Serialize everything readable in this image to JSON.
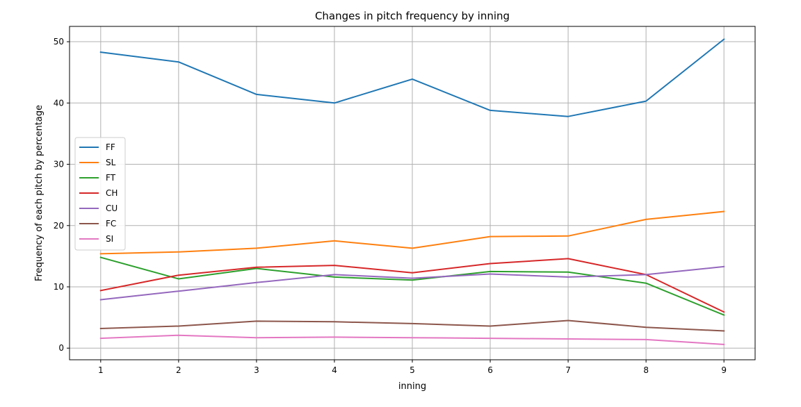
{
  "chart_data": {
    "type": "line",
    "title": "Changes in pitch frequency by inning",
    "xlabel": "inning",
    "ylabel": "Frequency of each pitch by percentage",
    "x": [
      1,
      2,
      3,
      4,
      5,
      6,
      7,
      8,
      9
    ],
    "xlim": [
      0.6,
      9.4
    ],
    "ylim": [
      -1.9,
      52.5
    ],
    "yticks": [
      0,
      10,
      20,
      30,
      40,
      50
    ],
    "grid": true,
    "legend_position": "center-left",
    "series": [
      {
        "name": "FF",
        "color": "#1f77b4",
        "values": [
          48.3,
          46.7,
          41.4,
          40.0,
          43.9,
          38.8,
          37.8,
          40.3,
          50.4
        ]
      },
      {
        "name": "SL",
        "color": "#ff7f0e",
        "values": [
          15.4,
          15.7,
          16.3,
          17.5,
          16.3,
          18.2,
          18.3,
          21.0,
          22.3
        ]
      },
      {
        "name": "FT",
        "color": "#2ca02c",
        "values": [
          14.8,
          11.3,
          13.0,
          11.6,
          11.1,
          12.5,
          12.4,
          10.6,
          5.4
        ]
      },
      {
        "name": "CH",
        "color": "#d62728",
        "values": [
          9.4,
          11.9,
          13.2,
          13.5,
          12.3,
          13.8,
          14.6,
          12.0,
          5.9
        ]
      },
      {
        "name": "CU",
        "color": "#9467bd",
        "values": [
          7.9,
          9.3,
          10.7,
          12.0,
          11.4,
          12.1,
          11.6,
          12.0,
          13.3
        ]
      },
      {
        "name": "FC",
        "color": "#8c564b",
        "values": [
          3.2,
          3.6,
          4.4,
          4.3,
          4.0,
          3.6,
          4.5,
          3.4,
          2.8
        ]
      },
      {
        "name": "SI",
        "color": "#e377c2",
        "values": [
          1.6,
          2.1,
          1.7,
          1.8,
          1.7,
          1.6,
          1.5,
          1.4,
          0.6
        ]
      }
    ]
  }
}
